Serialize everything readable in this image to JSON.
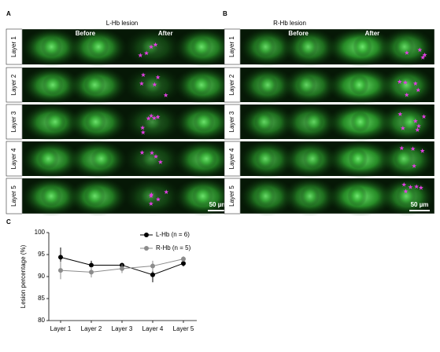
{
  "panels": [
    {
      "label": "A",
      "title": "L-Hb lesion",
      "before": "Before",
      "after": "After",
      "scale": "50 µm"
    },
    {
      "label": "B",
      "title": "R-Hb lesion",
      "before": "Before",
      "after": "After",
      "scale": "50 µm"
    }
  ],
  "layers": [
    "Layer 1",
    "Layer 2",
    "Layer 3",
    "Layer 4",
    "Layer 5"
  ],
  "chart_label": "C",
  "chart_data": {
    "type": "line",
    "ylabel": "Lesion percentage (%)",
    "categories": [
      "Layer 1",
      "Layer 2",
      "Layer 3",
      "Layer 4",
      "Layer 5"
    ],
    "series": [
      {
        "name": "L-Hb (n = 6)",
        "color": "#000000",
        "values": [
          94.4,
          92.6,
          92.6,
          90.4,
          93.0
        ],
        "errors": [
          2.2,
          1.0,
          0.5,
          1.7,
          0.7
        ]
      },
      {
        "name": "R-Hb (n = 5)",
        "color": "#8c8c8c",
        "values": [
          91.4,
          91.0,
          91.8,
          92.4,
          94.0
        ],
        "errors": [
          2.0,
          1.2,
          1.0,
          1.2,
          0.6
        ]
      }
    ],
    "ylim": [
      80,
      100
    ],
    "yticks": [
      80,
      85,
      90,
      95,
      100
    ],
    "legend": "upper right"
  }
}
